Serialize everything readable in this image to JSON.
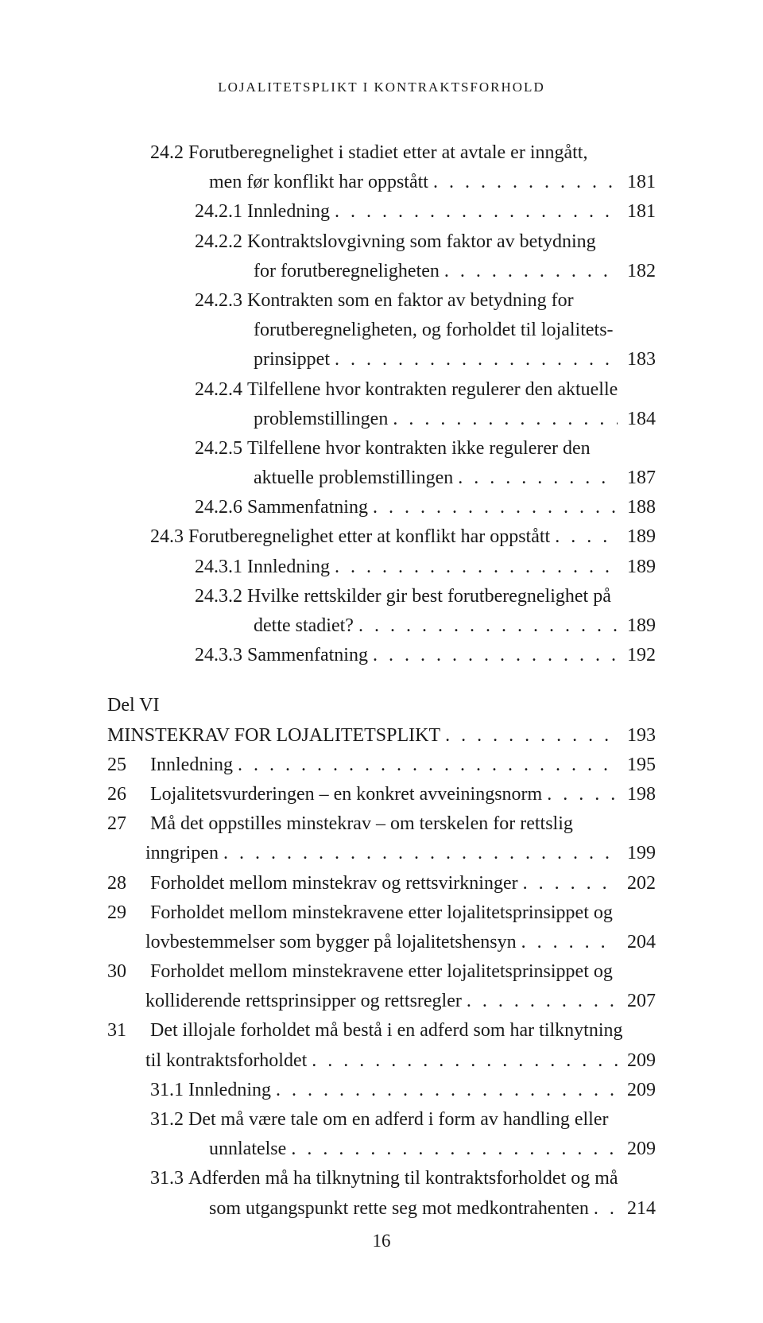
{
  "runningHead": "LOJALITETSPLIKT I KONTRAKTSFORHOLD",
  "pageNumber": "16",
  "entries": [
    {
      "type": "wrap-start",
      "indent": "ind1",
      "num": "24.2",
      "text": "Forutberegnelighet i stadiet etter at avtale er inngått,"
    },
    {
      "type": "wrap-end",
      "indent": "ind1txt",
      "text": "men før konflikt har oppstått",
      "page": "181"
    },
    {
      "type": "leaf",
      "indent": "ind2",
      "num": "24.2.1",
      "text": "Innledning",
      "page": "181"
    },
    {
      "type": "wrap-start",
      "indent": "ind2",
      "num": "24.2.2",
      "text": "Kontraktslovgivning som faktor av betydning"
    },
    {
      "type": "wrap-end",
      "indent": "ind2txt",
      "text": "for forutberegneligheten",
      "page": "182"
    },
    {
      "type": "wrap-start",
      "indent": "ind2",
      "num": "24.2.3",
      "text": "Kontrakten som en faktor av betydning for"
    },
    {
      "type": "wrap-mid",
      "indent": "ind2txt",
      "text": "forutberegneligheten, og forholdet til lojalitets-"
    },
    {
      "type": "wrap-end",
      "indent": "ind2txt",
      "text": "prinsippet",
      "page": "183"
    },
    {
      "type": "wrap-start",
      "indent": "ind2",
      "num": "24.2.4",
      "text": "Tilfellene hvor kontrakten regulerer den aktuelle"
    },
    {
      "type": "wrap-end",
      "indent": "ind2txt",
      "text": "problemstillingen",
      "page": "184"
    },
    {
      "type": "wrap-start",
      "indent": "ind2",
      "num": "24.2.5",
      "text": "Tilfellene hvor kontrakten ikke regulerer den"
    },
    {
      "type": "wrap-end",
      "indent": "ind2txt",
      "text": "aktuelle problemstillingen",
      "page": "187"
    },
    {
      "type": "leaf",
      "indent": "ind2",
      "num": "24.2.6",
      "text": "Sammenfatning",
      "page": "188"
    },
    {
      "type": "leaf",
      "indent": "ind1",
      "num": "24.3",
      "text": "Forutberegnelighet etter at konflikt har oppstått",
      "page": "189"
    },
    {
      "type": "leaf",
      "indent": "ind2",
      "num": "24.3.1",
      "text": "Innledning",
      "page": "189"
    },
    {
      "type": "wrap-start",
      "indent": "ind2",
      "num": "24.3.2",
      "text": "Hvilke rettskilder gir best forutberegnelighet på"
    },
    {
      "type": "wrap-end",
      "indent": "ind2txt",
      "text": "dette stadiet?",
      "page": "189"
    },
    {
      "type": "leaf",
      "indent": "ind2",
      "num": "24.3.3",
      "text": "Sammenfatning",
      "page": "192"
    },
    {
      "type": "block-label",
      "text": "Del VI"
    },
    {
      "type": "leaf-nonum",
      "indent": "",
      "text": "MINSTEKRAV FOR LOJALITETSPLIKT",
      "page": "193"
    },
    {
      "type": "leaf",
      "indent": "",
      "num": "25",
      "text": "Innledning",
      "numw": "48",
      "page": "195"
    },
    {
      "type": "leaf",
      "indent": "",
      "num": "26",
      "text": "Lojalitetsvurderingen – en konkret avveiningsnorm",
      "numw": "48",
      "page": "198"
    },
    {
      "type": "wrap-start",
      "indent": "",
      "num": "27",
      "text": "Må det oppstilles minstekrav – om terskelen for rettslig",
      "numw": "48"
    },
    {
      "type": "wrap-end",
      "indent": "ind0txt",
      "text": "inngripen",
      "page": "199"
    },
    {
      "type": "leaf",
      "indent": "",
      "num": "28",
      "text": "Forholdet mellom minstekrav og rettsvirkninger",
      "numw": "48",
      "page": "202"
    },
    {
      "type": "wrap-start",
      "indent": "",
      "num": "29",
      "text": "Forholdet mellom minstekravene etter lojalitetsprinsippet og",
      "numw": "48"
    },
    {
      "type": "wrap-end",
      "indent": "ind0txt",
      "text": "lovbestemmelser som bygger på lojalitetshensyn",
      "page": "204"
    },
    {
      "type": "wrap-start",
      "indent": "",
      "num": "30",
      "text": "Forholdet mellom minstekravene etter lojalitetsprinsippet og",
      "numw": "48"
    },
    {
      "type": "wrap-end",
      "indent": "ind0txt",
      "text": "kolliderende rettsprinsipper og rettsregler",
      "page": "207"
    },
    {
      "type": "wrap-start",
      "indent": "",
      "num": "31",
      "text": "Det illojale forholdet må bestå i en adferd som har tilknytning",
      "numw": "48"
    },
    {
      "type": "wrap-end",
      "indent": "ind0txt",
      "text": "til kontraktsforholdet",
      "page": "209"
    },
    {
      "type": "leaf",
      "indent": "ind1",
      "num": "31.1",
      "text": "Innledning",
      "page": "209"
    },
    {
      "type": "wrap-start",
      "indent": "ind1",
      "num": "31.2",
      "text": "Det må være tale om en adferd i form av handling eller"
    },
    {
      "type": "wrap-end",
      "indent": "ind1txt",
      "text": "unnlatelse",
      "page": "209"
    },
    {
      "type": "wrap-start",
      "indent": "ind1",
      "num": "31.3",
      "text": "Adferden må ha tilknytning til kontraktsforholdet og må"
    },
    {
      "type": "wrap-end",
      "indent": "ind1txt",
      "text": "som utgangspunkt rette seg mot medkontrahenten",
      "page": "214"
    }
  ]
}
